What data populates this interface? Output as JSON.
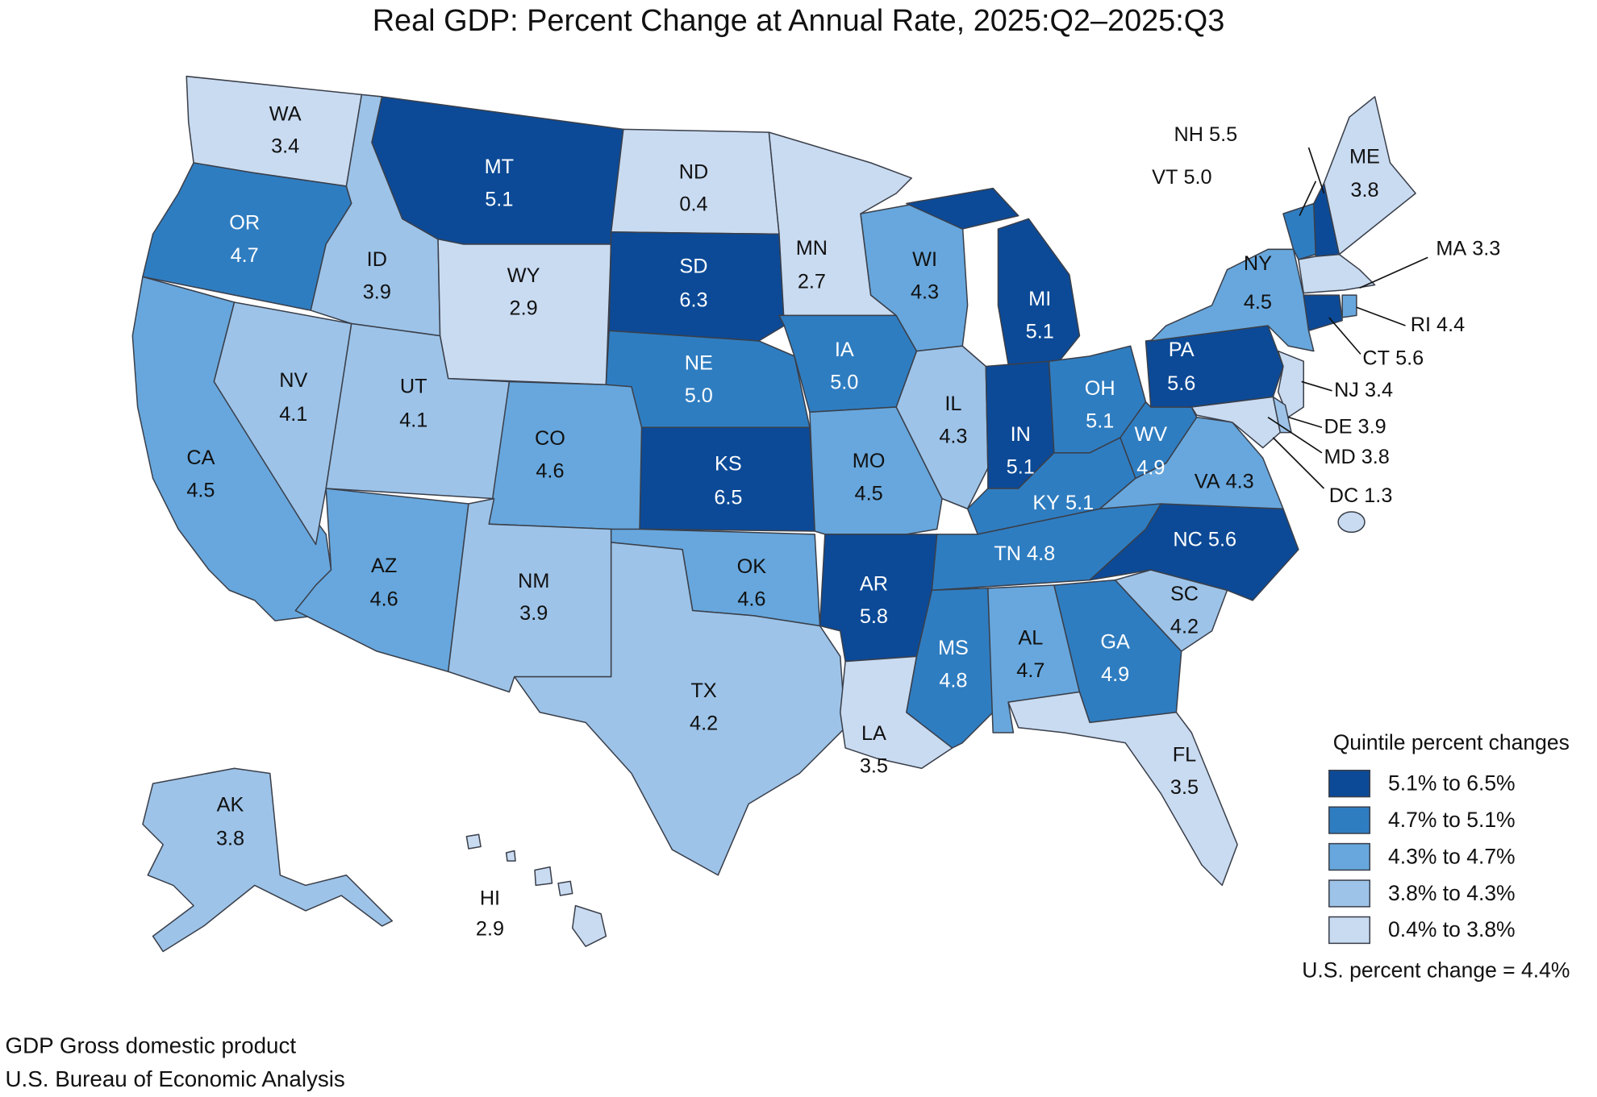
{
  "title": "Real GDP: Percent Change at Annual Rate, 2025:Q2–2025:Q3",
  "states": [
    {
      "abbr": "WA",
      "value": 3.4,
      "color": "#c9dbf1"
    },
    {
      "abbr": "OR",
      "value": 4.7,
      "color": "#2f7dc1"
    },
    {
      "abbr": "CA",
      "value": 4.5,
      "color": "#67a7dd"
    },
    {
      "abbr": "NV",
      "value": 4.1,
      "color": "#9dc3e8"
    },
    {
      "abbr": "ID",
      "value": 3.9,
      "color": "#9dc3e8"
    },
    {
      "abbr": "MT",
      "value": 5.1,
      "color": "#0c4a97"
    },
    {
      "abbr": "WY",
      "value": 2.9,
      "color": "#c9dbf1"
    },
    {
      "abbr": "UT",
      "value": 4.1,
      "color": "#9dc3e8"
    },
    {
      "abbr": "AZ",
      "value": 4.6,
      "color": "#67a7dd"
    },
    {
      "abbr": "CO",
      "value": 4.6,
      "color": "#67a7dd"
    },
    {
      "abbr": "NM",
      "value": 3.9,
      "color": "#9dc3e8"
    },
    {
      "abbr": "ND",
      "value": 0.4,
      "color": "#c9dbf1"
    },
    {
      "abbr": "SD",
      "value": 6.3,
      "color": "#0c4a97"
    },
    {
      "abbr": "NE",
      "value": 5,
      "label": "5.0",
      "color": "#2f7dc1"
    },
    {
      "abbr": "KS",
      "value": 6.5,
      "color": "#0c4a97"
    },
    {
      "abbr": "OK",
      "value": 4.6,
      "color": "#67a7dd"
    },
    {
      "abbr": "TX",
      "value": 4.2,
      "color": "#9dc3e8"
    },
    {
      "abbr": "MN",
      "value": 2.7,
      "color": "#c9dbf1"
    },
    {
      "abbr": "IA",
      "value": 5,
      "label": "5.0",
      "color": "#2f7dc1"
    },
    {
      "abbr": "MO",
      "value": 4.5,
      "color": "#67a7dd"
    },
    {
      "abbr": "AR",
      "value": 5.8,
      "color": "#0c4a97"
    },
    {
      "abbr": "LA",
      "value": 3.5,
      "color": "#c9dbf1"
    },
    {
      "abbr": "WI",
      "value": 4.3,
      "color": "#67a7dd"
    },
    {
      "abbr": "IL",
      "value": 4.3,
      "color": "#9dc3e8"
    },
    {
      "abbr": "MI",
      "value": 5.1,
      "color": "#0c4a97"
    },
    {
      "abbr": "IN",
      "value": 5.1,
      "color": "#0c4a97"
    },
    {
      "abbr": "OH",
      "value": 5.1,
      "color": "#2f7dc1"
    },
    {
      "abbr": "KY",
      "value": 5.1,
      "color": "#2f7dc1"
    },
    {
      "abbr": "TN",
      "value": 4.8,
      "color": "#2f7dc1"
    },
    {
      "abbr": "MS",
      "value": 4.8,
      "color": "#2f7dc1"
    },
    {
      "abbr": "AL",
      "value": 4.7,
      "color": "#67a7dd"
    },
    {
      "abbr": "GA",
      "value": 4.9,
      "color": "#2f7dc1"
    },
    {
      "abbr": "FL",
      "value": 3.5,
      "color": "#c9dbf1"
    },
    {
      "abbr": "SC",
      "value": 4.2,
      "color": "#9dc3e8"
    },
    {
      "abbr": "NC",
      "value": 5.6,
      "color": "#0c4a97"
    },
    {
      "abbr": "VA",
      "value": 4.3,
      "color": "#67a7dd"
    },
    {
      "abbr": "WV",
      "value": 4.9,
      "color": "#2f7dc1"
    },
    {
      "abbr": "PA",
      "value": 5.6,
      "color": "#0c4a97"
    },
    {
      "abbr": "NY",
      "value": 4.5,
      "color": "#67a7dd"
    },
    {
      "abbr": "NJ",
      "value": 3.4,
      "color": "#c9dbf1"
    },
    {
      "abbr": "DE",
      "value": 3.9,
      "color": "#9dc3e8"
    },
    {
      "abbr": "MD",
      "value": 3.8,
      "color": "#c9dbf1"
    },
    {
      "abbr": "DC",
      "value": 1.3,
      "color": "#c9dbf1"
    },
    {
      "abbr": "VT",
      "value": 5,
      "label": "5.0",
      "color": "#2f7dc1"
    },
    {
      "abbr": "NH",
      "value": 5.5,
      "color": "#0c4a97"
    },
    {
      "abbr": "ME",
      "value": 3.8,
      "color": "#c9dbf1"
    },
    {
      "abbr": "MA",
      "value": 3.3,
      "color": "#c9dbf1"
    },
    {
      "abbr": "CT",
      "value": 5.6,
      "color": "#0c4a97"
    },
    {
      "abbr": "RI",
      "value": 4.4,
      "color": "#67a7dd"
    },
    {
      "abbr": "AK",
      "value": 3.8,
      "color": "#9dc3e8"
    },
    {
      "abbr": "HI",
      "value": 2.9,
      "color": "#c9dbf1"
    }
  ],
  "legend": {
    "title": "Quintile percent changes",
    "items": [
      {
        "label": "5.1% to 6.5%",
        "color": "#0c4a97"
      },
      {
        "label": "4.7% to 5.1%",
        "color": "#2f7dc1"
      },
      {
        "label": "4.3% to 4.7%",
        "color": "#67a7dd"
      },
      {
        "label": "3.8% to 4.3%",
        "color": "#9dc3e8"
      },
      {
        "label": "0.4% to 3.8%",
        "color": "#c9dbf1"
      }
    ]
  },
  "note": "U.S. percent change = 4.4%",
  "footer": [
    "GDP Gross domestic product",
    "U.S. Bureau of Economic Analysis"
  ]
}
